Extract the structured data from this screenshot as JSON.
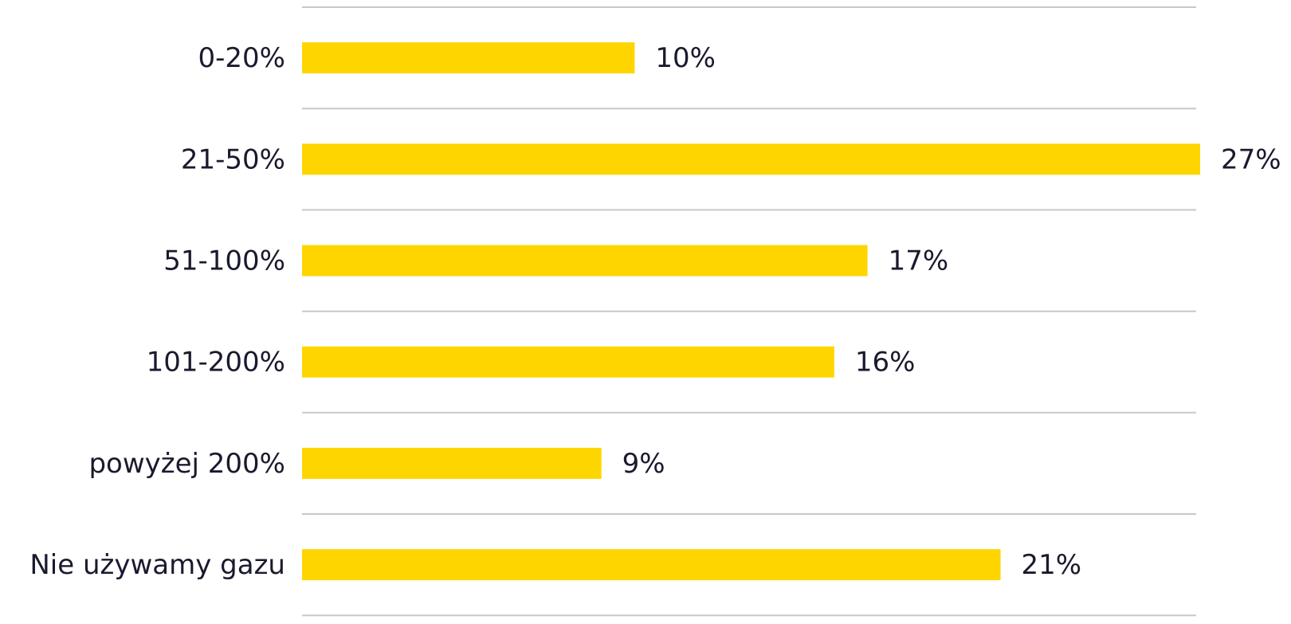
{
  "chart_data": {
    "type": "bar",
    "orientation": "horizontal",
    "categories": [
      "0-20%",
      "21-50%",
      "51-100%",
      "101-200%",
      "powyżej 200%",
      "Nie używamy gazu"
    ],
    "values": [
      10,
      27,
      17,
      16,
      9,
      21
    ],
    "value_labels": [
      "10%",
      "27%",
      "17%",
      "16%",
      "9%",
      "21%"
    ],
    "color": "#ffd500"
  }
}
